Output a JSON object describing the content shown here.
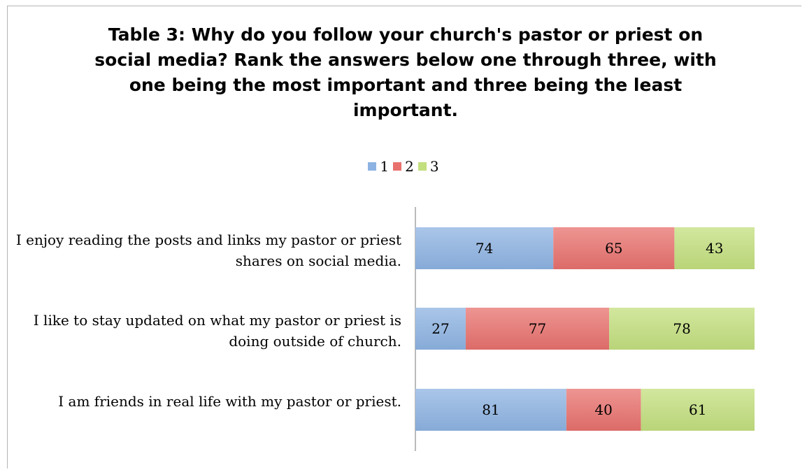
{
  "chart_data": {
    "type": "bar",
    "orientation": "horizontal",
    "stacked": true,
    "title": "Table 3: Why do you follow your church's pastor or priest on social media? Rank the answers below one through three, with one being the most important and three being the least important.",
    "categories": [
      "I enjoy reading the posts and links my pastor or priest shares on social media.",
      "I like to stay updated on what my pastor or priest is doing outside of church.",
      "I am friends in real life with my pastor or priest."
    ],
    "series": [
      {
        "name": "1",
        "color": "#8db3e2",
        "values": [
          74,
          27,
          81
        ]
      },
      {
        "name": "2",
        "color": "#e8716d",
        "values": [
          65,
          77,
          40
        ]
      },
      {
        "name": "3",
        "color": "#c3df7e",
        "values": [
          43,
          78,
          61
        ]
      }
    ],
    "legend_position": "top",
    "grid": false,
    "data_labels": true
  }
}
